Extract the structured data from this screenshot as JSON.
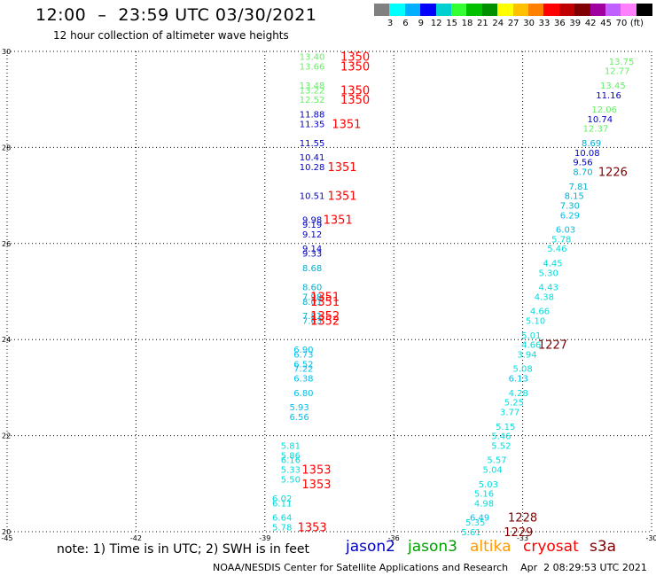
{
  "title": "12:00  –  23:59 UTC 03/30/2021",
  "subtitle": "12 hour collection of altimeter wave heights",
  "scale": {
    "colors": [
      "#808080",
      "#00ffff",
      "#00b0ff",
      "#0000ff",
      "#00d0d0",
      "#33ff33",
      "#00c000",
      "#009000",
      "#ffff00",
      "#ffc000",
      "#ff8000",
      "#ff0000",
      "#c00000",
      "#800000",
      "#a000a0",
      "#c060ff",
      "#ff80ff",
      "#000000"
    ],
    "labels": [
      "3",
      "6",
      "9",
      "12",
      "15",
      "18",
      "21",
      "24",
      "27",
      "30",
      "33",
      "36",
      "39",
      "42",
      "45",
      "70",
      "(ft)"
    ]
  },
  "axes": {
    "x_ticks": [
      "-45",
      "-42",
      "-39",
      "-36",
      "-33",
      "-30"
    ],
    "y_ticks": [
      "30",
      "28",
      "26",
      "24",
      "22",
      "20"
    ]
  },
  "notes": {
    "note": "note:  1) Time is in UTC;  2) SWH is in feet",
    "credit": "NOAA/NESDIS Center for Satellite Applications and Research    Apr  2 08:29:53 UTC 2021"
  },
  "legend": [
    {
      "label": "jason2",
      "color": "#0000c0"
    },
    {
      "label": "jason3",
      "color": "#00a000"
    },
    {
      "label": "altika",
      "color": "#ff9900"
    },
    {
      "label": "cryosat",
      "color": "#ff0000"
    },
    {
      "label": "s3a",
      "color": "#800000"
    }
  ],
  "chart_data": {
    "type": "scatter",
    "xlim": [
      -45,
      -30
    ],
    "ylim": [
      20,
      30
    ],
    "grid": true,
    "value_labels": [
      {
        "lon": -37.9,
        "lat": 29.9,
        "v": "13.40",
        "c": "#66ee66"
      },
      {
        "lon": -37.9,
        "lat": 29.7,
        "v": "13.66",
        "c": "#66ee66"
      },
      {
        "lon": -37.9,
        "lat": 29.3,
        "v": "13.48",
        "c": "#66ee66"
      },
      {
        "lon": -37.9,
        "lat": 29.2,
        "v": "13.22",
        "c": "#66ee66"
      },
      {
        "lon": -37.9,
        "lat": 29.0,
        "v": "12.52",
        "c": "#66ee66"
      },
      {
        "lon": -37.9,
        "lat": 28.7,
        "v": "11.88",
        "c": "#0000cc"
      },
      {
        "lon": -37.9,
        "lat": 28.5,
        "v": "11.35",
        "c": "#0000cc"
      },
      {
        "lon": -37.9,
        "lat": 28.1,
        "v": "11.55",
        "c": "#0000cc"
      },
      {
        "lon": -37.9,
        "lat": 27.8,
        "v": "10.41",
        "c": "#0000cc"
      },
      {
        "lon": -37.9,
        "lat": 27.6,
        "v": "10.28",
        "c": "#0000cc"
      },
      {
        "lon": -37.9,
        "lat": 27.0,
        "v": "10.51",
        "c": "#0000cc"
      },
      {
        "lon": -37.9,
        "lat": 26.5,
        "v": "9.98",
        "c": "#0000cc"
      },
      {
        "lon": -37.9,
        "lat": 26.4,
        "v": "9.19",
        "c": "#0000cc"
      },
      {
        "lon": -37.9,
        "lat": 26.2,
        "v": "9.12",
        "c": "#0000cc"
      },
      {
        "lon": -37.9,
        "lat": 25.9,
        "v": "9.14",
        "c": "#0000cc"
      },
      {
        "lon": -37.9,
        "lat": 25.8,
        "v": "9.33",
        "c": "#0000cc"
      },
      {
        "lon": -37.9,
        "lat": 25.5,
        "v": "8.68",
        "c": "#00b0d0"
      },
      {
        "lon": -37.9,
        "lat": 25.1,
        "v": "8.60",
        "c": "#00b0d0"
      },
      {
        "lon": -37.9,
        "lat": 24.9,
        "v": "7.98",
        "c": "#00b0d0"
      },
      {
        "lon": -37.9,
        "lat": 24.8,
        "v": "8.01",
        "c": "#00b0d0"
      },
      {
        "lon": -37.9,
        "lat": 24.5,
        "v": "7.81",
        "c": "#00b0d0"
      },
      {
        "lon": -37.9,
        "lat": 24.4,
        "v": "7.63",
        "c": "#00b0d0"
      },
      {
        "lon": -38.1,
        "lat": 23.8,
        "v": "6.90",
        "c": "#00c0ee"
      },
      {
        "lon": -38.1,
        "lat": 23.7,
        "v": "6.73",
        "c": "#00c0ee"
      },
      {
        "lon": -38.1,
        "lat": 23.5,
        "v": "6.52",
        "c": "#00c0ee"
      },
      {
        "lon": -38.1,
        "lat": 23.4,
        "v": "7.22",
        "c": "#00c0ee"
      },
      {
        "lon": -38.1,
        "lat": 23.2,
        "v": "6.38",
        "c": "#00c0ee"
      },
      {
        "lon": -38.1,
        "lat": 22.9,
        "v": "6.80",
        "c": "#00c0ee"
      },
      {
        "lon": -38.2,
        "lat": 22.6,
        "v": "5.93",
        "c": "#00c0ee"
      },
      {
        "lon": -38.2,
        "lat": 22.4,
        "v": "6.56",
        "c": "#00c0ee"
      },
      {
        "lon": -38.4,
        "lat": 21.8,
        "v": "5.81",
        "c": "#00dddd"
      },
      {
        "lon": -38.4,
        "lat": 21.6,
        "v": "5.86",
        "c": "#00dddd"
      },
      {
        "lon": -38.4,
        "lat": 21.5,
        "v": "6.16",
        "c": "#00dddd"
      },
      {
        "lon": -38.4,
        "lat": 21.3,
        "v": "5.33",
        "c": "#00dddd"
      },
      {
        "lon": -38.4,
        "lat": 21.1,
        "v": "5.50",
        "c": "#00dddd"
      },
      {
        "lon": -38.6,
        "lat": 20.7,
        "v": "6.02",
        "c": "#00dddd"
      },
      {
        "lon": -38.6,
        "lat": 20.6,
        "v": "6.11",
        "c": "#00dddd"
      },
      {
        "lon": -38.6,
        "lat": 20.3,
        "v": "6.64",
        "c": "#00dddd"
      },
      {
        "lon": -38.6,
        "lat": 20.1,
        "v": "5.78",
        "c": "#00dddd"
      },
      {
        "lon": -30.7,
        "lat": 29.8,
        "v": "13.75",
        "c": "#66ee66"
      },
      {
        "lon": -30.8,
        "lat": 29.6,
        "v": "12.77",
        "c": "#66ee66"
      },
      {
        "lon": -30.9,
        "lat": 29.3,
        "v": "13.45",
        "c": "#66ee66"
      },
      {
        "lon": -31.0,
        "lat": 29.1,
        "v": "11.16",
        "c": "#0000cc"
      },
      {
        "lon": -31.1,
        "lat": 28.8,
        "v": "12.06",
        "c": "#66ee66"
      },
      {
        "lon": -31.2,
        "lat": 28.6,
        "v": "10.74",
        "c": "#0000cc"
      },
      {
        "lon": -31.3,
        "lat": 28.4,
        "v": "12.37",
        "c": "#66ee66"
      },
      {
        "lon": -31.4,
        "lat": 28.1,
        "v": "8.69",
        "c": "#00b0d0"
      },
      {
        "lon": -31.5,
        "lat": 27.9,
        "v": "10.08",
        "c": "#0000cc"
      },
      {
        "lon": -31.6,
        "lat": 27.7,
        "v": "9.56",
        "c": "#0000cc"
      },
      {
        "lon": -31.6,
        "lat": 27.5,
        "v": "8.70",
        "c": "#00b0d0"
      },
      {
        "lon": -31.7,
        "lat": 27.2,
        "v": "7.81",
        "c": "#00b0d0"
      },
      {
        "lon": -31.8,
        "lat": 27.0,
        "v": "8.15",
        "c": "#00b0d0"
      },
      {
        "lon": -31.9,
        "lat": 26.8,
        "v": "7.30",
        "c": "#00b0d0"
      },
      {
        "lon": -31.9,
        "lat": 26.6,
        "v": "6.29",
        "c": "#00c0ee"
      },
      {
        "lon": -32.0,
        "lat": 26.3,
        "v": "6.03",
        "c": "#00c0ee"
      },
      {
        "lon": -32.1,
        "lat": 26.1,
        "v": "5.78",
        "c": "#00dddd"
      },
      {
        "lon": -32.2,
        "lat": 25.9,
        "v": "5.46",
        "c": "#00dddd"
      },
      {
        "lon": -32.3,
        "lat": 25.6,
        "v": "4.45",
        "c": "#00dddd"
      },
      {
        "lon": -32.4,
        "lat": 25.4,
        "v": "5.30",
        "c": "#00dddd"
      },
      {
        "lon": -32.4,
        "lat": 25.1,
        "v": "4.43",
        "c": "#00dddd"
      },
      {
        "lon": -32.5,
        "lat": 24.9,
        "v": "4.38",
        "c": "#00dddd"
      },
      {
        "lon": -32.6,
        "lat": 24.6,
        "v": "4.66",
        "c": "#00dddd"
      },
      {
        "lon": -32.7,
        "lat": 24.4,
        "v": "5.10",
        "c": "#00dddd"
      },
      {
        "lon": -32.8,
        "lat": 24.1,
        "v": "5.01",
        "c": "#00dddd"
      },
      {
        "lon": -32.8,
        "lat": 23.9,
        "v": "4.66",
        "c": "#00dddd"
      },
      {
        "lon": -32.9,
        "lat": 23.7,
        "v": "3.94",
        "c": "#00dddd"
      },
      {
        "lon": -33.0,
        "lat": 23.4,
        "v": "5.08",
        "c": "#00dddd"
      },
      {
        "lon": -33.1,
        "lat": 23.2,
        "v": "6.13",
        "c": "#00c0ee"
      },
      {
        "lon": -33.1,
        "lat": 22.9,
        "v": "4.28",
        "c": "#00dddd"
      },
      {
        "lon": -33.2,
        "lat": 22.7,
        "v": "5.25",
        "c": "#00dddd"
      },
      {
        "lon": -33.3,
        "lat": 22.5,
        "v": "3.77",
        "c": "#00dddd"
      },
      {
        "lon": -33.4,
        "lat": 22.2,
        "v": "5.15",
        "c": "#00dddd"
      },
      {
        "lon": -33.5,
        "lat": 22.0,
        "v": "5.46",
        "c": "#00dddd"
      },
      {
        "lon": -33.5,
        "lat": 21.8,
        "v": "5.52",
        "c": "#00dddd"
      },
      {
        "lon": -33.6,
        "lat": 21.5,
        "v": "5.57",
        "c": "#00dddd"
      },
      {
        "lon": -33.7,
        "lat": 21.3,
        "v": "5.04",
        "c": "#00dddd"
      },
      {
        "lon": -33.8,
        "lat": 21.0,
        "v": "5.03",
        "c": "#00dddd"
      },
      {
        "lon": -33.9,
        "lat": 20.8,
        "v": "5.16",
        "c": "#00dddd"
      },
      {
        "lon": -33.9,
        "lat": 20.6,
        "v": "4.98",
        "c": "#00dddd"
      },
      {
        "lon": -34.0,
        "lat": 20.3,
        "v": "6.49",
        "c": "#00c0ee"
      },
      {
        "lon": -34.1,
        "lat": 20.2,
        "v": "5.35",
        "c": "#00dddd"
      },
      {
        "lon": -34.2,
        "lat": 20.0,
        "v": "5.61",
        "c": "#00dddd"
      }
    ],
    "track_labels": [
      {
        "lon": -36.9,
        "lat": 29.9,
        "v": "1350",
        "c": "#ff0000"
      },
      {
        "lon": -36.9,
        "lat": 29.7,
        "v": "1350",
        "c": "#ff0000"
      },
      {
        "lon": -36.9,
        "lat": 29.2,
        "v": "1350",
        "c": "#ff0000"
      },
      {
        "lon": -36.9,
        "lat": 29.0,
        "v": "1350",
        "c": "#ff0000"
      },
      {
        "lon": -37.1,
        "lat": 28.5,
        "v": "1351",
        "c": "#ff0000"
      },
      {
        "lon": -37.2,
        "lat": 27.6,
        "v": "1351",
        "c": "#ff0000"
      },
      {
        "lon": -37.2,
        "lat": 27.0,
        "v": "1351",
        "c": "#ff0000"
      },
      {
        "lon": -37.3,
        "lat": 26.5,
        "v": "1351",
        "c": "#ff0000"
      },
      {
        "lon": -37.6,
        "lat": 24.9,
        "v": "1351",
        "c": "#ff0000"
      },
      {
        "lon": -37.6,
        "lat": 24.8,
        "v": "1351",
        "c": "#ff0000"
      },
      {
        "lon": -37.6,
        "lat": 24.5,
        "v": "1352",
        "c": "#ff0000"
      },
      {
        "lon": -37.6,
        "lat": 24.4,
        "v": "1352",
        "c": "#ff0000"
      },
      {
        "lon": -37.8,
        "lat": 21.3,
        "v": "1353",
        "c": "#ff0000"
      },
      {
        "lon": -37.8,
        "lat": 21.0,
        "v": "1353",
        "c": "#ff0000"
      },
      {
        "lon": -37.9,
        "lat": 20.1,
        "v": "1353",
        "c": "#ff0000"
      },
      {
        "lon": -30.9,
        "lat": 27.5,
        "v": "1226",
        "c": "#800000"
      },
      {
        "lon": -32.3,
        "lat": 23.9,
        "v": "1227",
        "c": "#800000"
      },
      {
        "lon": -33.0,
        "lat": 20.3,
        "v": "1228",
        "c": "#800000"
      },
      {
        "lon": -33.1,
        "lat": 20.0,
        "v": "1229",
        "c": "#800000"
      }
    ]
  }
}
